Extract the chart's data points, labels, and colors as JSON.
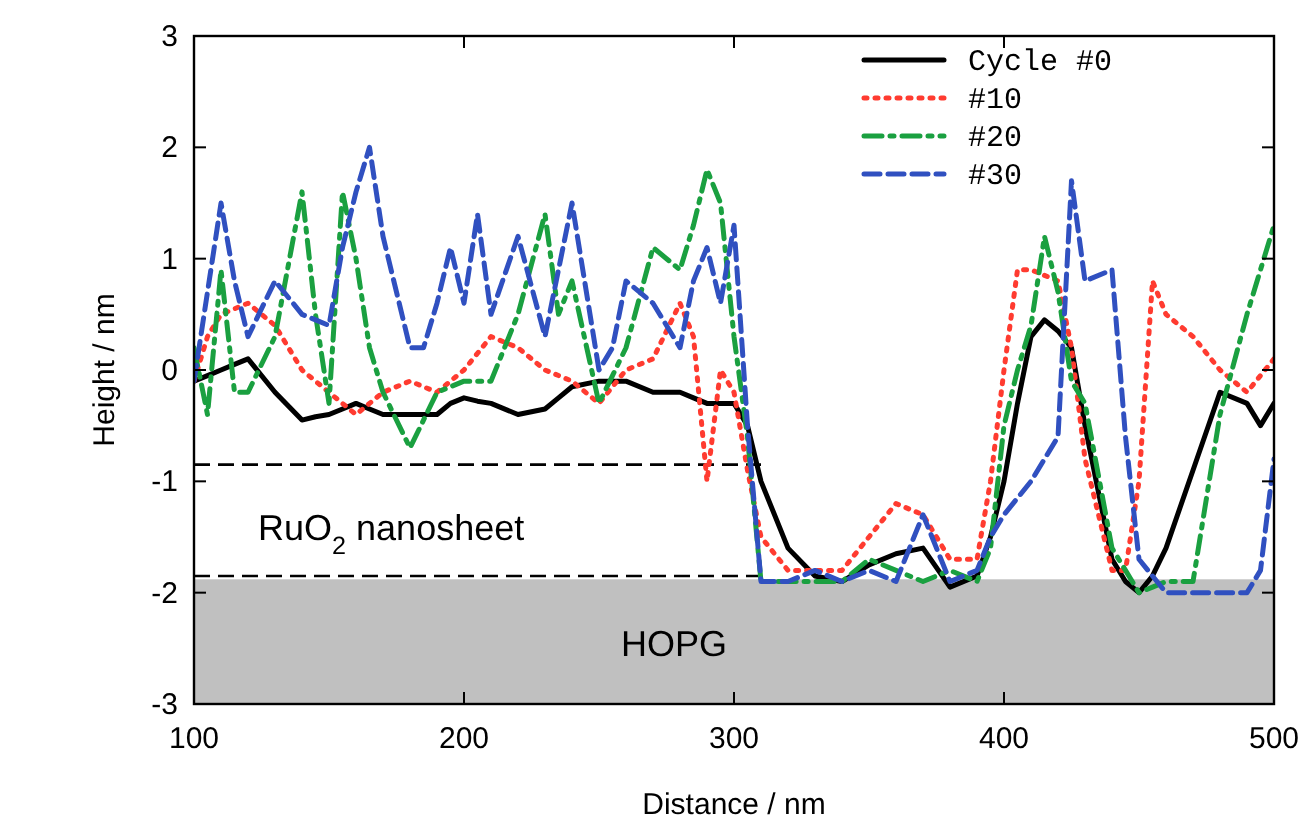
{
  "chart_data": {
    "type": "line",
    "xlabel": "Distance / nm",
    "ylabel": "Height / nm",
    "x": [
      100,
      105,
      110,
      115,
      120,
      130,
      140,
      145,
      150,
      155,
      160,
      165,
      170,
      180,
      185,
      190,
      195,
      200,
      205,
      210,
      220,
      230,
      235,
      240,
      250,
      255,
      260,
      270,
      280,
      285,
      290,
      295,
      300,
      305,
      310,
      320,
      330,
      340,
      350,
      360,
      370,
      380,
      390,
      395,
      400,
      405,
      410,
      415,
      420,
      425,
      430,
      440,
      445,
      450,
      455,
      460,
      470,
      480,
      490,
      495,
      500
    ],
    "xlim": [
      100,
      500
    ],
    "xticks": [
      100,
      200,
      300,
      400,
      500
    ],
    "ylim": [
      -3,
      3
    ],
    "yticks": [
      -3,
      -2,
      -1,
      0,
      1,
      2,
      3
    ],
    "grid": false,
    "legend": "top right",
    "series": [
      {
        "name": "Cycle #0",
        "color": "#000000",
        "line_style": "solid",
        "values": [
          -0.1,
          -0.05,
          0,
          0.05,
          0.1,
          -0.2,
          -0.45,
          -0.42,
          -0.4,
          -0.35,
          -0.3,
          -0.35,
          -0.4,
          -0.4,
          -0.4,
          -0.4,
          -0.3,
          -0.25,
          -0.28,
          -0.3,
          -0.4,
          -0.35,
          -0.25,
          -0.15,
          -0.1,
          -0.1,
          -0.1,
          -0.2,
          -0.2,
          -0.25,
          -0.3,
          -0.3,
          -0.3,
          -0.5,
          -1,
          -1.6,
          -1.85,
          -1.9,
          -1.75,
          -1.65,
          -1.6,
          -1.95,
          -1.85,
          -1.5,
          -1,
          -0.3,
          0.3,
          0.45,
          0.35,
          0.2,
          -0.5,
          -1.7,
          -1.9,
          -2,
          -1.85,
          -1.6,
          -0.9,
          -0.2,
          -0.3,
          -0.5,
          -0.3
        ]
      },
      {
        "name": "#10",
        "color": "#ff3b30",
        "line_style": "dotted",
        "values": [
          -0.1,
          0.3,
          0.5,
          0.55,
          0.6,
          0.4,
          0,
          -0.1,
          -0.2,
          -0.3,
          -0.4,
          -0.3,
          -0.2,
          -0.1,
          -0.15,
          -0.2,
          -0.1,
          0,
          0.15,
          0.3,
          0.2,
          0,
          -0.05,
          -0.1,
          -0.3,
          -0.15,
          0,
          0.1,
          0.6,
          0.3,
          -1,
          0,
          -0.2,
          -0.9,
          -1.5,
          -1.8,
          -1.8,
          -1.8,
          -1.5,
          -1.2,
          -1.3,
          -1.7,
          -1.7,
          -1,
          0,
          0.9,
          0.9,
          0.85,
          0.8,
          0.2,
          -0.8,
          -1.8,
          -1.8,
          -1,
          0.8,
          0.5,
          0.3,
          0,
          -0.2,
          -0.05,
          0.1
        ]
      },
      {
        "name": "#20",
        "color": "#1aa040",
        "line_style": "dashdot",
        "values": [
          0.2,
          -0.4,
          0.9,
          -0.2,
          -0.2,
          0.3,
          1.6,
          0.5,
          -0.3,
          1.6,
          1,
          0.2,
          -0.2,
          -0.7,
          -0.45,
          -0.2,
          -0.15,
          -0.1,
          -0.1,
          -0.1,
          0.5,
          1.4,
          0.5,
          0.8,
          -0.3,
          -0.05,
          0.2,
          1.1,
          0.9,
          1.3,
          1.8,
          1.5,
          0.3,
          -0.6,
          -1.9,
          -1.9,
          -1.9,
          -1.9,
          -1.7,
          -1.8,
          -1.9,
          -1.8,
          -1.9,
          -1.6,
          -0.5,
          0,
          0.4,
          1.2,
          0.7,
          -0.1,
          -0.3,
          -1.6,
          -1.8,
          -2,
          -1.95,
          -1.9,
          -1.9,
          -0.4,
          0.5,
          0.9,
          1.3
        ]
      },
      {
        "name": "#30",
        "color": "#3050c0",
        "line_style": "dashed",
        "values": [
          -0.1,
          0.7,
          1.5,
          0.8,
          0.3,
          0.8,
          0.5,
          0.45,
          0.4,
          1.1,
          1.6,
          2,
          1.2,
          0.2,
          0.2,
          0.6,
          1.1,
          0.6,
          1.4,
          0.5,
          1.2,
          0.3,
          0.9,
          1.5,
          0,
          0.2,
          0.8,
          0.6,
          0.2,
          0.8,
          1.1,
          0.6,
          1.3,
          -0.5,
          -1.9,
          -1.9,
          -1.8,
          -1.9,
          -1.8,
          -1.9,
          -1.3,
          -1.9,
          -1.8,
          -1.5,
          -1.3,
          -1.15,
          -1,
          -0.8,
          -0.6,
          1.7,
          0.8,
          0.9,
          -0.6,
          -1.7,
          -1.85,
          -2,
          -2,
          -2,
          -2,
          -1.8,
          -0.8
        ]
      }
    ],
    "ref_lines": [
      {
        "axis": "y",
        "value": -0.85,
        "color": "#000000",
        "line_style": "dashed"
      },
      {
        "axis": "y",
        "value": -1.85,
        "color": "#000000",
        "line_style": "dashed"
      }
    ],
    "bands": [
      {
        "axis": "y",
        "from": -3,
        "to": -1.88,
        "label": "HOPG",
        "color": "#c0c0c0"
      }
    ],
    "annotations": [
      "RuO$_{2}$ nanosheet"
    ]
  }
}
